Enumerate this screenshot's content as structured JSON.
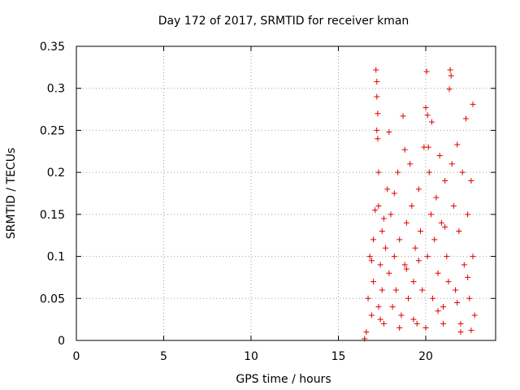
{
  "colors": {
    "series": "#e00000",
    "grid": "#a0a0a0",
    "frame": "#000000"
  },
  "chart_data": {
    "type": "scatter",
    "title": "Day 172 of 2017, SRMTID for receiver kman",
    "xlabel": "GPS time / hours",
    "ylabel": "SRMTID / TECUs",
    "xlim": [
      0,
      24
    ],
    "ylim": [
      0,
      0.35
    ],
    "xticks": [
      0,
      5,
      10,
      15,
      20
    ],
    "xtick_labels": [
      "0",
      "5",
      "10",
      "15",
      "20"
    ],
    "yticks": [
      0,
      0.05,
      0.1,
      0.15,
      0.2,
      0.25,
      0.3,
      0.35
    ],
    "ytick_labels": [
      "0",
      "0.05",
      "0.1",
      "0.15",
      "0.2",
      "0.25",
      "0.3",
      "0.35"
    ],
    "grid": true,
    "marker": "plus",
    "series": [
      {
        "points": [
          [
            16.5,
            0.002
          ],
          [
            16.6,
            0.01
          ],
          [
            16.7,
            0.05
          ],
          [
            16.8,
            0.1
          ],
          [
            16.9,
            0.03
          ],
          [
            17.0,
            0.12
          ],
          [
            17.0,
            0.07
          ],
          [
            17.1,
            0.155
          ],
          [
            17.15,
            0.322
          ],
          [
            17.2,
            0.308
          ],
          [
            17.2,
            0.29
          ],
          [
            17.25,
            0.27
          ],
          [
            17.2,
            0.25
          ],
          [
            17.25,
            0.24
          ],
          [
            17.3,
            0.2
          ],
          [
            17.3,
            0.16
          ],
          [
            17.3,
            0.04
          ],
          [
            17.4,
            0.09
          ],
          [
            17.5,
            0.06
          ],
          [
            17.5,
            0.13
          ],
          [
            17.6,
            0.02
          ],
          [
            17.7,
            0.11
          ],
          [
            17.8,
            0.18
          ],
          [
            17.9,
            0.248
          ],
          [
            17.9,
            0.08
          ],
          [
            18.0,
            0.15
          ],
          [
            18.1,
            0.04
          ],
          [
            18.2,
            0.1
          ],
          [
            18.3,
            0.06
          ],
          [
            18.4,
            0.2
          ],
          [
            18.5,
            0.12
          ],
          [
            18.6,
            0.03
          ],
          [
            18.7,
            0.267
          ],
          [
            18.8,
            0.227
          ],
          [
            18.8,
            0.09
          ],
          [
            18.9,
            0.14
          ],
          [
            19.0,
            0.05
          ],
          [
            19.1,
            0.21
          ],
          [
            19.2,
            0.16
          ],
          [
            19.3,
            0.07
          ],
          [
            19.4,
            0.11
          ],
          [
            19.5,
            0.02
          ],
          [
            19.6,
            0.18
          ],
          [
            19.7,
            0.13
          ],
          [
            19.8,
            0.06
          ],
          [
            19.9,
            0.23
          ],
          [
            20.0,
            0.277
          ],
          [
            20.05,
            0.32
          ],
          [
            20.1,
            0.268
          ],
          [
            20.1,
            0.1
          ],
          [
            20.15,
            0.23
          ],
          [
            20.2,
            0.2
          ],
          [
            20.3,
            0.15
          ],
          [
            20.35,
            0.26
          ],
          [
            20.4,
            0.05
          ],
          [
            20.5,
            0.12
          ],
          [
            20.6,
            0.17
          ],
          [
            20.7,
            0.08
          ],
          [
            20.8,
            0.22
          ],
          [
            20.9,
            0.14
          ],
          [
            21.0,
            0.04
          ],
          [
            21.1,
            0.19
          ],
          [
            21.2,
            0.1
          ],
          [
            21.3,
            0.07
          ],
          [
            21.35,
            0.299
          ],
          [
            21.4,
            0.322
          ],
          [
            21.45,
            0.315
          ],
          [
            21.5,
            0.21
          ],
          [
            21.6,
            0.16
          ],
          [
            21.7,
            0.06
          ],
          [
            21.8,
            0.233
          ],
          [
            21.9,
            0.13
          ],
          [
            22.0,
            0.02
          ],
          [
            22.1,
            0.2
          ],
          [
            22.2,
            0.09
          ],
          [
            22.3,
            0.264
          ],
          [
            22.4,
            0.15
          ],
          [
            22.5,
            0.05
          ],
          [
            22.6,
            0.19
          ],
          [
            22.7,
            0.281
          ],
          [
            22.7,
            0.1
          ],
          [
            22.8,
            0.03
          ],
          [
            16.9,
            0.095
          ],
          [
            17.6,
            0.145
          ],
          [
            18.2,
            0.175
          ],
          [
            18.9,
            0.085
          ],
          [
            19.6,
            0.095
          ],
          [
            20.7,
            0.035
          ],
          [
            21.1,
            0.135
          ],
          [
            21.8,
            0.045
          ],
          [
            22.4,
            0.075
          ],
          [
            17.4,
            0.025
          ],
          [
            18.5,
            0.015
          ],
          [
            19.3,
            0.025
          ],
          [
            20.0,
            0.015
          ],
          [
            21.0,
            0.02
          ],
          [
            22.0,
            0.01
          ],
          [
            22.6,
            0.012
          ]
        ]
      }
    ]
  }
}
